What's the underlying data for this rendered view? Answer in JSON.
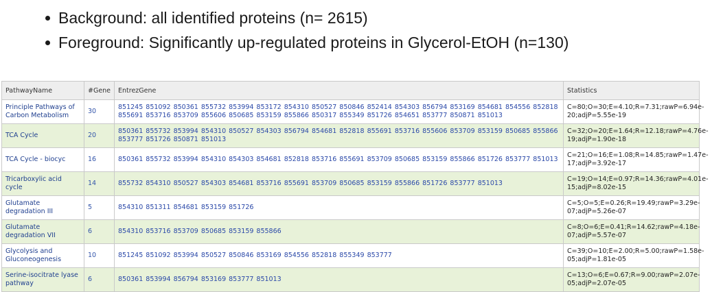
{
  "bullets": [
    "Background: all identified proteins (n= 2615)",
    "Foreground: Significantly up-regulated proteins in Glycerol-EtOH (n=130)"
  ],
  "table": {
    "headers": [
      "PathwayName",
      "#Gene",
      "EntrezGene",
      "Statistics"
    ],
    "rows": [
      {
        "name": "Principle Pathways of Carbon Metabolism",
        "count": "30",
        "genes": "851245 851092 850361 855732 853994 853172 854310 850527 850846 852414 854303 856794 853169 854681 854556 852818 855691 853716 853709 855606 850685 853159 855866 850317 855349 851726 854651 853777 850871 851013",
        "stats": "C=80;O=30;E=4.10;R=7.31;rawP=6.94e-20;adjP=5.55e-19"
      },
      {
        "name": "TCA Cycle",
        "count": "20",
        "genes": "850361 855732 853994 854310 850527 854303 856794 854681 852818 855691 853716 855606 853709 853159 850685 855866 853777 851726 850871 851013",
        "stats": "C=32;O=20;E=1.64;R=12.18;rawP=4.76e-19;adjP=1.90e-18"
      },
      {
        "name": "TCA Cycle - biocyc",
        "count": "16",
        "genes": "850361 855732 853994 854310 854303 854681 852818 853716 855691 853709 850685 853159 855866 851726 853777 851013",
        "stats": "C=21;O=16;E=1.08;R=14.85;rawP=1.47e-17;adjP=3.92e-17"
      },
      {
        "name": "Tricarboxylic acid cycle",
        "count": "14",
        "genes": "855732 854310 850527 854303 854681 853716 855691 853709 850685 853159 855866 851726 853777 851013",
        "stats": "C=19;O=14;E=0.97;R=14.36;rawP=4.01e-15;adjP=8.02e-15"
      },
      {
        "name": "Glutamate degradation III",
        "count": "5",
        "genes": "854310 851311 854681 853159 851726",
        "stats": "C=5;O=5;E=0.26;R=19.49;rawP=3.29e-07;adjP=5.26e-07"
      },
      {
        "name": "Glutamate degradation VII",
        "count": "6",
        "genes": "854310 853716 853709 850685 853159 855866",
        "stats": "C=8;O=6;E=0.41;R=14.62;rawP=4.18e-07;adjP=5.57e-07"
      },
      {
        "name": "Glycolysis and Gluconeogenesis",
        "count": "10",
        "genes": "851245 851092 853994 850527 850846 853169 854556 852818 855349 853777",
        "stats": "C=39;O=10;E=2.00;R=5.00;rawP=1.58e-05;adjP=1.81e-05"
      },
      {
        "name": "Serine-isocitrate lyase pathway",
        "count": "6",
        "genes": "850361 853994 856794 853169 853777 851013",
        "stats": "C=13;O=6;E=0.67;R=9.00;rawP=2.07e-05;adjP=2.07e-05"
      }
    ]
  }
}
